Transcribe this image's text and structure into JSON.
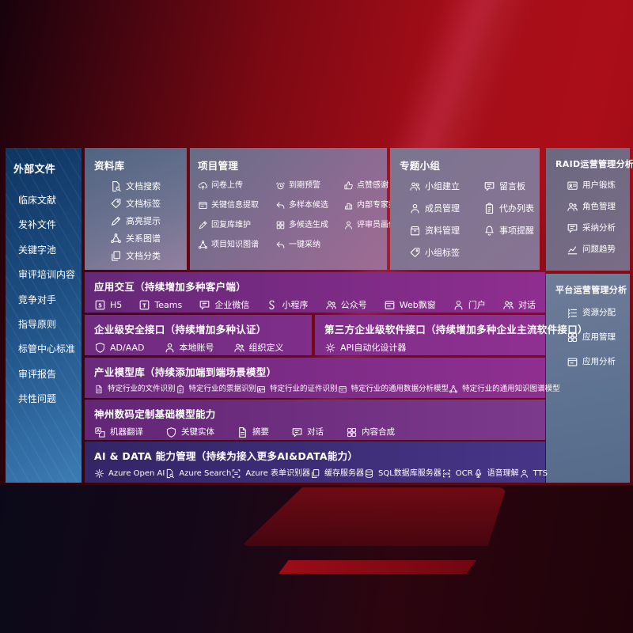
{
  "palette": {
    "bg_red": "#a30d18",
    "sidebar_blue": "#1d4e82",
    "panel_slate": "#6e7c97",
    "row_purple": "#8f2e90",
    "row_indigo": "#473587"
  },
  "sidebar": {
    "title": "外部文件",
    "items": [
      "临床文献",
      "发补文件",
      "关键字池",
      "审评培训内容",
      "竞争对手",
      "指导原则",
      "标管中心标准",
      "审评报告",
      "共性问题"
    ]
  },
  "panels": {
    "repository": {
      "title": "资料库",
      "items": [
        {
          "label": "文档搜索",
          "icon": "doc-search"
        },
        {
          "label": "文档标签",
          "icon": "tag"
        },
        {
          "label": "高亮提示",
          "icon": "pen"
        },
        {
          "label": "关系图谱",
          "icon": "network"
        },
        {
          "label": "文档分类",
          "icon": "docs"
        }
      ]
    },
    "project": {
      "title": "项目管理",
      "items": [
        {
          "label": "问卷上传",
          "icon": "cloud-upload"
        },
        {
          "label": "到期预警",
          "icon": "alarm"
        },
        {
          "label": "点赞感谢",
          "icon": "thumbs-up"
        },
        {
          "label": "关键信息提取",
          "icon": "window"
        },
        {
          "label": "多样本候选",
          "icon": "reply"
        },
        {
          "label": "内部专家排名",
          "icon": "podium"
        },
        {
          "label": "回复库维护",
          "icon": "pen"
        },
        {
          "label": "多候选生成",
          "icon": "grid"
        },
        {
          "label": "评审员画像",
          "icon": "person"
        },
        {
          "label": "项目知识图谱",
          "icon": "network"
        },
        {
          "label": "一键采纳",
          "icon": "reply"
        }
      ]
    },
    "groups": {
      "title": "专题小组",
      "items": [
        {
          "label": "小组建立",
          "icon": "people"
        },
        {
          "label": "留言板",
          "icon": "chat"
        },
        {
          "label": "成员管理",
          "icon": "person"
        },
        {
          "label": "代办列表",
          "icon": "clipboard"
        },
        {
          "label": "资料管理",
          "icon": "box"
        },
        {
          "label": "事项提醒",
          "icon": "bell"
        },
        {
          "label": "小组标签",
          "icon": "tag"
        }
      ]
    },
    "raid": {
      "title": "RAID运营管理分析",
      "items": [
        {
          "label": "用户锻炼",
          "icon": "idcard"
        },
        {
          "label": "角色管理",
          "icon": "people"
        },
        {
          "label": "采纳分析",
          "icon": "chat"
        },
        {
          "label": "问题趋势",
          "icon": "trend"
        }
      ]
    },
    "platform": {
      "title": "平台运营管理分析",
      "items": [
        {
          "label": "资源分配",
          "icon": "list"
        },
        {
          "label": "应用管理",
          "icon": "grid"
        },
        {
          "label": "应用分析",
          "icon": "window"
        }
      ]
    }
  },
  "rows": {
    "interaction": {
      "title": "应用交互（持续增加多种客户端）",
      "items": [
        {
          "label": "H5",
          "icon": "square5"
        },
        {
          "label": "Teams",
          "icon": "squareT"
        },
        {
          "label": "企业微信",
          "icon": "chat"
        },
        {
          "label": "小程序",
          "icon": "scurve"
        },
        {
          "label": "公众号",
          "icon": "people"
        },
        {
          "label": "Web飘窗",
          "icon": "window"
        },
        {
          "label": "门户",
          "icon": "person"
        },
        {
          "label": "对话",
          "icon": "people"
        }
      ]
    },
    "security": {
      "title": "企业级安全接口（持续增加多种认证）",
      "items": [
        {
          "label": "AD/AAD",
          "icon": "shield"
        },
        {
          "label": "本地账号",
          "icon": "person"
        },
        {
          "label": "组织定义",
          "icon": "people"
        }
      ]
    },
    "thirdparty": {
      "title": "第三方企业级软件接口（持续增加多种企业主流软件接口）",
      "items": [
        {
          "label": "API自动化设计器",
          "icon": "gear"
        }
      ]
    },
    "industry": {
      "title": "产业模型库（持续添加端到端场景模型）",
      "items": [
        {
          "label": "特定行业的文件识别",
          "icon": "doc"
        },
        {
          "label": "特定行业的票据识别",
          "icon": "clipboard"
        },
        {
          "label": "特定行业的证件识别",
          "icon": "idcard"
        },
        {
          "label": "特定行业的通用数据分析模型",
          "icon": "window"
        },
        {
          "label": "特定行业的通用知识图谱模型",
          "icon": "network"
        }
      ]
    },
    "base": {
      "title": "神州数码定制基础模型能力",
      "items": [
        {
          "label": "机器翻译",
          "icon": "translate"
        },
        {
          "label": "关键实体",
          "icon": "shield"
        },
        {
          "label": "摘要",
          "icon": "doc"
        },
        {
          "label": "对话",
          "icon": "chat"
        },
        {
          "label": "内容合成",
          "icon": "grid"
        }
      ]
    },
    "aidata": {
      "title": "AI & DATA 能力管理（持续为接入更多AI&DATA能力）",
      "items": [
        {
          "label": "Azure Open AI",
          "icon": "openai"
        },
        {
          "label": "Azure Search",
          "icon": "doc-search"
        },
        {
          "label": "Azure 表单识别器",
          "icon": "brackets"
        },
        {
          "label": "缓存服务器",
          "icon": "docs"
        },
        {
          "label": "SQL数据库服务器",
          "icon": "db"
        },
        {
          "label": "OCR",
          "icon": "ocr"
        },
        {
          "label": "语音理解",
          "icon": "mic"
        },
        {
          "label": "TTS",
          "icon": "person"
        }
      ]
    }
  }
}
